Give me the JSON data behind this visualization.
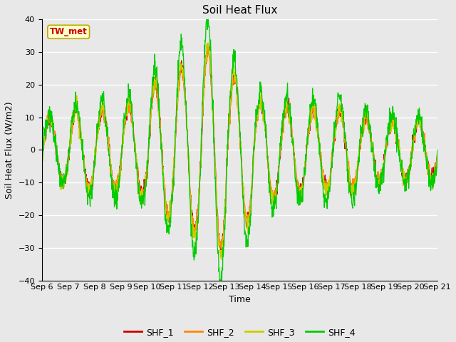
{
  "title": "Soil Heat Flux",
  "xlabel": "Time",
  "ylabel": "Soil Heat Flux (W/m2)",
  "ylim": [
    -40,
    40
  ],
  "yticks": [
    -40,
    -30,
    -20,
    -10,
    0,
    10,
    20,
    30,
    40
  ],
  "x_labels": [
    "Sep 6",
    "Sep 7",
    "Sep 8",
    "Sep 9",
    "Sep 10",
    "Sep 11",
    "Sep 12",
    "Sep 13",
    "Sep 14",
    "Sep 15",
    "Sep 16",
    "Sep 17",
    "Sep 18",
    "Sep 19",
    "Sep 20",
    "Sep 21"
  ],
  "series_colors": [
    "#cc0000",
    "#ff8800",
    "#cccc00",
    "#00cc00"
  ],
  "series_names": [
    "SHF_1",
    "SHF_2",
    "SHF_3",
    "SHF_4"
  ],
  "annotation_text": "TW_met",
  "annotation_bg": "#ffffcc",
  "annotation_border": "#bbaa00",
  "plot_bg_color": "#e8e8e8",
  "fig_bg_color": "#e8e8e8",
  "grid_color": "#ffffff",
  "title_fontsize": 11,
  "label_fontsize": 9,
  "tick_fontsize": 8
}
